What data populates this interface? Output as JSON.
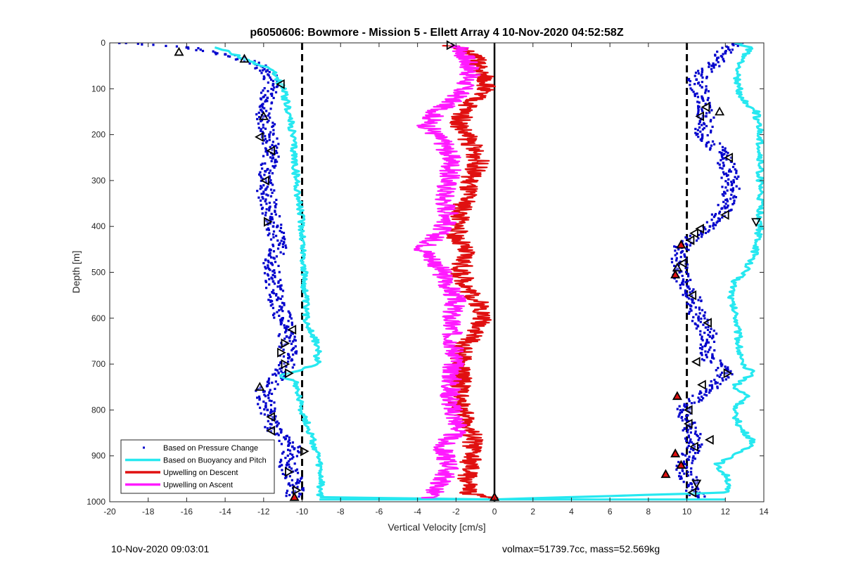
{
  "chart_data": {
    "type": "line",
    "title": "p6050606: Bowmore - Mission 5 - Ellett Array 4 10-Nov-2020 04:52:58Z",
    "xlabel": "Vertical Velocity [cm/s]",
    "ylabel": "Depth [m]",
    "xlim": [
      -20,
      14
    ],
    "ylim": [
      0,
      1000
    ],
    "y_reversed": true,
    "grid": false,
    "legend_position": "bottom-left",
    "x_ticks": [
      "-20",
      "-18",
      "-16",
      "-14",
      "-12",
      "-10",
      "-8",
      "-6",
      "-4",
      "-2",
      "0",
      "2",
      "4",
      "6",
      "8",
      "10",
      "12",
      "14"
    ],
    "y_ticks": [
      "0",
      "100",
      "200",
      "300",
      "400",
      "500",
      "600",
      "700",
      "800",
      "900",
      "1000"
    ],
    "reference_lines": [
      {
        "style": "dashed",
        "x": -10
      },
      {
        "style": "dashed",
        "x": 10
      },
      {
        "style": "solid",
        "x": 0
      }
    ],
    "series": [
      {
        "name": "Based on Pressure Change",
        "style": "points",
        "color": "#0000cc",
        "segments": [
          {
            "depth": [
              0,
              10,
              25,
              40,
              60,
              90,
              120,
              160,
              200,
              240,
              280,
              320,
              360,
              400,
              440,
              480,
              520,
              560,
              600,
              640,
              680,
              720,
              760,
              800,
              840,
              880,
              920,
              960,
              990
            ],
            "velocity": [
              -19.5,
              -16.0,
              -14.0,
              -12.8,
              -11.8,
              -11.5,
              -11.8,
              -12.0,
              -11.7,
              -11.6,
              -11.9,
              -11.9,
              -11.7,
              -11.5,
              -11.2,
              -11.6,
              -11.5,
              -11.3,
              -11.0,
              -10.8,
              -10.7,
              -11.0,
              -12.0,
              -11.8,
              -11.5,
              -10.5,
              -10.8,
              -10.3,
              -10.4
            ]
          },
          {
            "depth": [
              0,
              20,
              50,
              80,
              120,
              160,
              200,
              240,
              280,
              320,
              360,
              400,
              440,
              480,
              520,
              560,
              600,
              640,
              680,
              720,
              760,
              800,
              840,
              880,
              920,
              960,
              990
            ],
            "velocity": [
              12.5,
              12.0,
              11.3,
              10.5,
              10.8,
              11.0,
              10.8,
              11.8,
              12.2,
              12.3,
              12.0,
              11.2,
              9.8,
              9.6,
              9.8,
              10.3,
              10.6,
              11.2,
              11.0,
              12.0,
              11.0,
              9.8,
              10.2,
              10.4,
              9.8,
              10.2,
              10.6
            ]
          }
        ]
      },
      {
        "name": "Based on Buoyancy and Pitch",
        "style": "line",
        "color": "#27e8f0",
        "segments": [
          {
            "depth": [
              10,
              25,
              35,
              60,
              100,
              150,
              200,
              300,
              400,
              500,
              600,
              660,
              700,
              720,
              725,
              740,
              800,
              860,
              900,
              960,
              990,
              995
            ],
            "velocity": [
              -14.5,
              -13.5,
              -13.0,
              -11.5,
              -11.0,
              -10.7,
              -10.5,
              -10.3,
              -10.0,
              -9.9,
              -9.8,
              -9.2,
              -9.2,
              -10.5,
              -11.2,
              -10.3,
              -10.0,
              -9.5,
              -9.2,
              -9.0,
              -9.1,
              0
            ]
          },
          {
            "depth": [
              995,
              980,
              950,
              920,
              900,
              870,
              840,
              800,
              770,
              750,
              720,
              700,
              650,
              600,
              560,
              520,
              500,
              460,
              400,
              350,
              300,
              250,
              200,
              150,
              120,
              80,
              40,
              10,
              0
            ],
            "velocity": [
              0,
              12.0,
              12.2,
              11.5,
              12.5,
              13.5,
              12.8,
              12.4,
              13.2,
              12.4,
              13.5,
              12.8,
              12.7,
              12.6,
              12.3,
              12.5,
              13.0,
              13.5,
              13.8,
              13.8,
              13.8,
              13.8,
              13.8,
              13.6,
              12.8,
              12.6,
              12.8,
              13.3,
              12.5
            ]
          }
        ]
      },
      {
        "name": "Upwelling on Descent",
        "style": "line",
        "color": "#e01010",
        "segments": [
          {
            "depth": [
              5,
              30,
              60,
              90,
              120,
              150,
              180,
              220,
              260,
              300,
              340,
              380,
              420,
              460,
              500,
              540,
              580,
              620,
              660,
              700,
              740,
              780,
              820,
              860,
              900,
              940,
              980,
              995
            ],
            "velocity": [
              -2.2,
              -1.0,
              -0.8,
              -0.3,
              -1.0,
              -1.6,
              -1.8,
              -1.2,
              -0.8,
              -1.3,
              -1.5,
              -1.8,
              -2.0,
              -1.5,
              -1.8,
              -1.3,
              -0.6,
              -0.7,
              -1.6,
              -1.8,
              -1.7,
              -1.9,
              -1.5,
              -1.1,
              -1.2,
              -1.4,
              -1.4,
              0
            ]
          }
        ]
      },
      {
        "name": "Upwelling on Ascent",
        "style": "line",
        "color": "#ff1aff",
        "segments": [
          {
            "depth": [
              995,
              960,
              920,
              880,
              840,
              800,
              760,
              720,
              680,
              640,
              600,
              560,
              520,
              480,
              450,
              420,
              380,
              340,
              300,
              260,
              220,
              180,
              150,
              120,
              90,
              60,
              30,
              5
            ],
            "velocity": [
              -3.5,
              -2.8,
              -2.3,
              -2.8,
              -1.8,
              -2.2,
              -2.3,
              -2.2,
              -2.0,
              -2.2,
              -2.3,
              -2.0,
              -2.5,
              -3.0,
              -3.7,
              -3.0,
              -2.3,
              -2.6,
              -2.4,
              -2.2,
              -2.6,
              -3.5,
              -3.0,
              -2.0,
              -1.5,
              -1.2,
              -1.5,
              -1.8
            ]
          }
        ]
      }
    ],
    "markers": [
      {
        "x": -16.4,
        "y": 20,
        "shape": "triangle-up",
        "fill": "none"
      },
      {
        "x": -13.0,
        "y": 35,
        "shape": "triangle-up",
        "fill": "none"
      },
      {
        "x": -11.1,
        "y": 90,
        "shape": "triangle-left",
        "fill": "none"
      },
      {
        "x": -12.0,
        "y": 160,
        "shape": "triangle-up",
        "fill": "none"
      },
      {
        "x": -12.2,
        "y": 205,
        "shape": "triangle-left",
        "fill": "none"
      },
      {
        "x": -11.6,
        "y": 235,
        "shape": "triangle-left",
        "fill": "none"
      },
      {
        "x": -11.9,
        "y": 300,
        "shape": "triangle-left",
        "fill": "none"
      },
      {
        "x": -11.8,
        "y": 390,
        "shape": "triangle-right",
        "fill": "none"
      },
      {
        "x": -10.5,
        "y": 625,
        "shape": "triangle-left",
        "fill": "none"
      },
      {
        "x": -10.9,
        "y": 655,
        "shape": "triangle-right",
        "fill": "none"
      },
      {
        "x": -11.1,
        "y": 675,
        "shape": "triangle-right",
        "fill": "none"
      },
      {
        "x": -10.9,
        "y": 700,
        "shape": "triangle-right",
        "fill": "none"
      },
      {
        "x": -10.7,
        "y": 720,
        "shape": "triangle-right",
        "fill": "none"
      },
      {
        "x": -12.2,
        "y": 750,
        "shape": "triangle-up",
        "fill": "none"
      },
      {
        "x": -11.6,
        "y": 815,
        "shape": "triangle-left",
        "fill": "none"
      },
      {
        "x": -11.6,
        "y": 845,
        "shape": "triangle-left",
        "fill": "none"
      },
      {
        "x": -9.9,
        "y": 890,
        "shape": "triangle-right",
        "fill": "none"
      },
      {
        "x": -10.7,
        "y": 935,
        "shape": "triangle-right",
        "fill": "none"
      },
      {
        "x": -10.3,
        "y": 975,
        "shape": "triangle-right",
        "fill": "none"
      },
      {
        "x": -10.4,
        "y": 990,
        "shape": "triangle-up",
        "fill": "red"
      },
      {
        "x": -2.3,
        "y": 5,
        "shape": "triangle-right",
        "fill": "none"
      },
      {
        "x": 0.0,
        "y": 990,
        "shape": "triangle-up",
        "fill": "red"
      },
      {
        "x": 11.0,
        "y": 140,
        "shape": "triangle-left",
        "fill": "none"
      },
      {
        "x": 11.7,
        "y": 150,
        "shape": "triangle-up",
        "fill": "none"
      },
      {
        "x": 10.7,
        "y": 160,
        "shape": "triangle-left",
        "fill": "none"
      },
      {
        "x": 12.2,
        "y": 250,
        "shape": "triangle-left",
        "fill": "none"
      },
      {
        "x": 12.0,
        "y": 375,
        "shape": "triangle-left",
        "fill": "none"
      },
      {
        "x": 13.6,
        "y": 390,
        "shape": "triangle-down",
        "fill": "none"
      },
      {
        "x": 10.7,
        "y": 405,
        "shape": "triangle-left",
        "fill": "none"
      },
      {
        "x": 10.4,
        "y": 415,
        "shape": "triangle-left",
        "fill": "none"
      },
      {
        "x": 10.2,
        "y": 430,
        "shape": "triangle-left",
        "fill": "none"
      },
      {
        "x": 9.7,
        "y": 440,
        "shape": "triangle-up",
        "fill": "red"
      },
      {
        "x": 9.8,
        "y": 480,
        "shape": "triangle-left",
        "fill": "none"
      },
      {
        "x": 9.5,
        "y": 490,
        "shape": "triangle-up",
        "fill": "none"
      },
      {
        "x": 9.4,
        "y": 505,
        "shape": "triangle-up",
        "fill": "red"
      },
      {
        "x": 10.3,
        "y": 550,
        "shape": "triangle-left",
        "fill": "none"
      },
      {
        "x": 11.1,
        "y": 610,
        "shape": "triangle-left",
        "fill": "none"
      },
      {
        "x": 10.5,
        "y": 695,
        "shape": "triangle-left",
        "fill": "none"
      },
      {
        "x": 12.1,
        "y": 720,
        "shape": "triangle-right",
        "fill": "none"
      },
      {
        "x": 10.8,
        "y": 745,
        "shape": "triangle-left",
        "fill": "none"
      },
      {
        "x": 9.5,
        "y": 770,
        "shape": "triangle-up",
        "fill": "red"
      },
      {
        "x": 10.1,
        "y": 800,
        "shape": "triangle-left",
        "fill": "none"
      },
      {
        "x": 10.1,
        "y": 830,
        "shape": "triangle-left",
        "fill": "none"
      },
      {
        "x": 11.2,
        "y": 865,
        "shape": "triangle-left",
        "fill": "none"
      },
      {
        "x": 10.4,
        "y": 880,
        "shape": "triangle-left",
        "fill": "none"
      },
      {
        "x": 9.4,
        "y": 895,
        "shape": "triangle-up",
        "fill": "red"
      },
      {
        "x": 9.7,
        "y": 920,
        "shape": "triangle-up",
        "fill": "red"
      },
      {
        "x": 8.9,
        "y": 940,
        "shape": "triangle-up",
        "fill": "red"
      },
      {
        "x": 10.5,
        "y": 960,
        "shape": "triangle-down",
        "fill": "none"
      },
      {
        "x": 10.3,
        "y": 980,
        "shape": "triangle-left",
        "fill": "none"
      }
    ]
  },
  "footer": {
    "left": "10-Nov-2020 09:03:01",
    "right": "volmax=51739.7cc, mass=52.569kg"
  }
}
